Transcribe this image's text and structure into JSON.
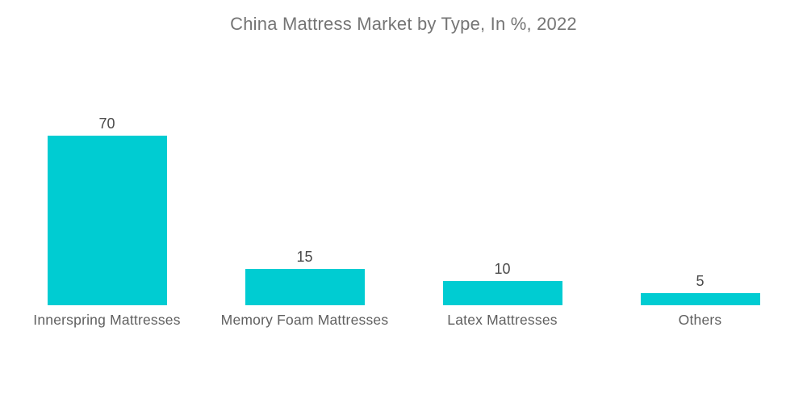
{
  "title": "China Mattress Market by Type, In %, 2022",
  "chart_data": {
    "type": "bar",
    "title": "China Mattress Market by Type, In %, 2022",
    "categories": [
      "Innerspring Mattresses",
      "Memory Foam Mattresses",
      "Latex Mattresses",
      "Others"
    ],
    "values": [
      70,
      15,
      10,
      5
    ],
    "xlabel": "",
    "ylabel": "",
    "ylim": [
      0,
      75
    ],
    "grid": false,
    "legend": false,
    "axes_visible": false,
    "value_labels_position": "above-bar",
    "colors": {
      "bar": "#00CCD2",
      "title_text": "#757575",
      "value_label_text": "#4a4a4a",
      "category_label_text": "#606060",
      "background": "#ffffff"
    }
  }
}
